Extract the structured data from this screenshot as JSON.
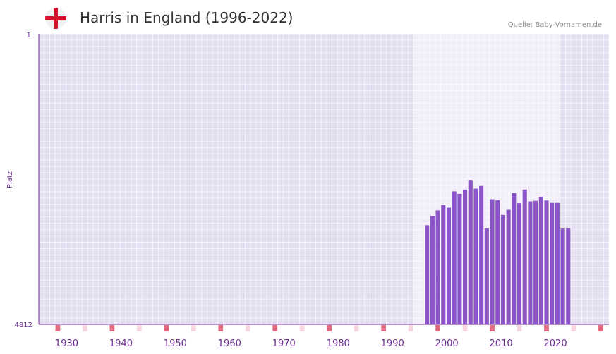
{
  "header": {
    "title": "Harris in England (1996-2022)",
    "source": "Quelle: Baby-Vornamen.de",
    "flag_icon": "england-flag-icon"
  },
  "colors": {
    "bar": "#8b55c8",
    "axis": "#6a2c91",
    "year_label": "#6a2c91",
    "plot_bg": "#e4dff0",
    "highlight_bg": "#f1edf9",
    "decade_marker": "#e06a80",
    "half_decade_marker": "#f7d6df"
  },
  "chart_data": {
    "type": "bar",
    "title": "Harris in England (1996-2022)",
    "xlabel": "",
    "ylabel": "Platz",
    "y_axis_top_label": "1",
    "y_axis_bottom_label": "4812",
    "ylim": [
      4812,
      1
    ],
    "xlim": [
      1925,
      2029
    ],
    "grid": true,
    "highlight_range": [
      1994,
      2021
    ],
    "x_tick_labels": [
      "1930",
      "1940",
      "1950",
      "1960",
      "1970",
      "1980",
      "1990",
      "2000",
      "2010",
      "2020"
    ],
    "categories": [
      1996,
      1997,
      1998,
      1999,
      2000,
      2001,
      2002,
      2003,
      2004,
      2005,
      2006,
      2007,
      2008,
      2009,
      2010,
      2011,
      2012,
      2013,
      2014,
      2015,
      2016,
      2017,
      2018,
      2019,
      2020,
      2021,
      2022
    ],
    "values": [
      3170,
      3020,
      2925,
      2835,
      2880,
      2610,
      2650,
      2580,
      2420,
      2565,
      2520,
      3225,
      2740,
      2755,
      3000,
      2915,
      2640,
      2805,
      2580,
      2775,
      2765,
      2700,
      2760,
      2800,
      2800,
      3225,
      3225
    ]
  }
}
